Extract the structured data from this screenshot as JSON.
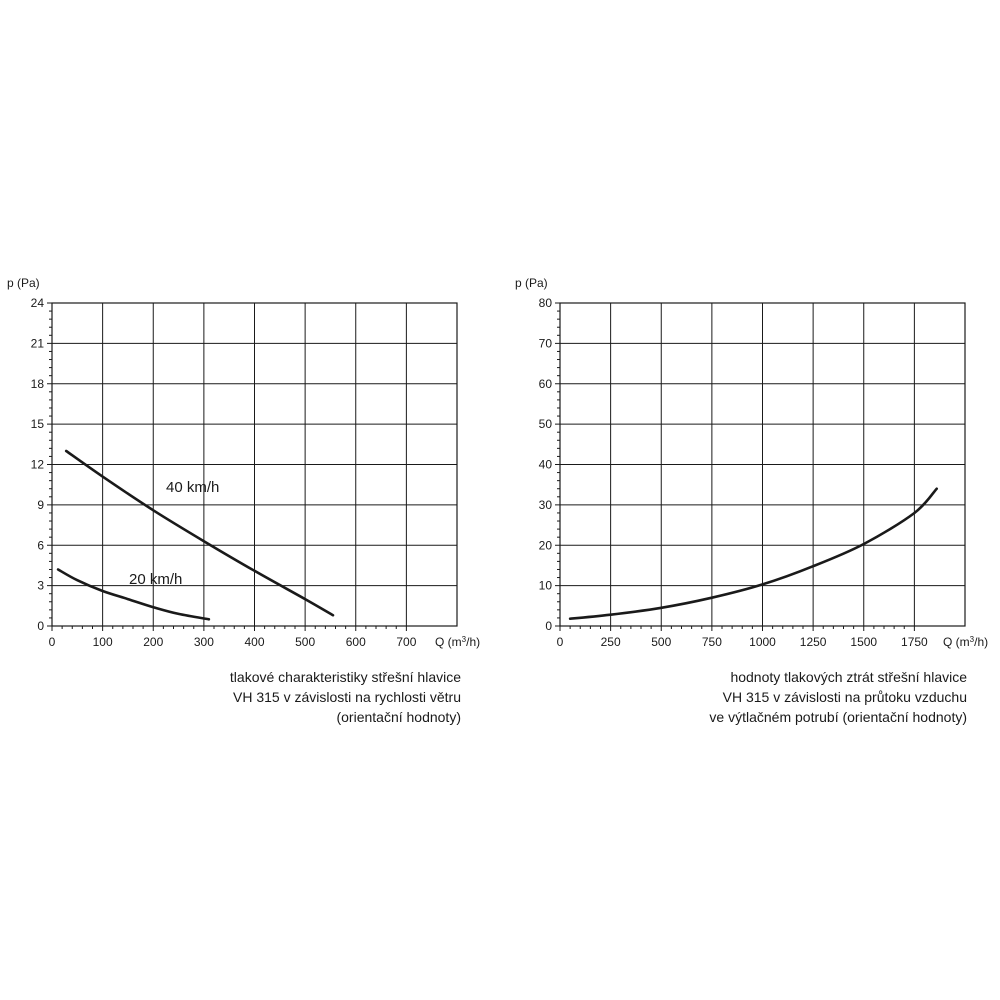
{
  "chart_data": [
    {
      "type": "line",
      "ylabel": "p (Pa)",
      "xlabel_prefix": "Q (m",
      "xlabel_sup": "3",
      "xlabel_suffix": "/h)",
      "xlim": [
        0,
        800
      ],
      "ylim": [
        0,
        24
      ],
      "x_ticks": [
        0,
        100,
        200,
        300,
        400,
        500,
        600,
        700
      ],
      "y_ticks": [
        0,
        3,
        6,
        9,
        12,
        15,
        18,
        21,
        24
      ],
      "grid": true,
      "series": [
        {
          "name": "40 km/h",
          "x": [
            28,
            100,
            200,
            300,
            400,
            500,
            555
          ],
          "y": [
            13.0,
            11.1,
            8.6,
            6.3,
            4.1,
            2.0,
            0.8
          ]
        },
        {
          "name": "20 km/h",
          "x": [
            12,
            50,
            100,
            150,
            200,
            250,
            310
          ],
          "y": [
            4.2,
            3.4,
            2.6,
            2.0,
            1.4,
            0.9,
            0.5
          ]
        }
      ],
      "caption": [
        "tlakové charakteristiky střešní hlavice",
        "VH 315 v závislosti na rychlosti větru",
        "(orientační hodnoty)"
      ]
    },
    {
      "type": "line",
      "ylabel": "p (Pa)",
      "xlabel_prefix": "Q (m",
      "xlabel_sup": "3",
      "xlabel_suffix": "/h)",
      "xlim": [
        0,
        2000
      ],
      "ylim": [
        0,
        80
      ],
      "x_ticks": [
        0,
        250,
        500,
        750,
        1000,
        1250,
        1500,
        1750
      ],
      "y_ticks": [
        0,
        10,
        20,
        30,
        40,
        50,
        60,
        70,
        80
      ],
      "grid": true,
      "series": [
        {
          "x": [
            50,
            250,
            500,
            750,
            1000,
            1250,
            1500,
            1750,
            1860
          ],
          "y": [
            1.8,
            2.8,
            4.5,
            7.0,
            10.3,
            14.8,
            20.3,
            28.0,
            34.0
          ]
        }
      ],
      "caption": [
        "hodnoty tlakových ztrát střešní hlavice",
        "VH 315 v závislosti na průtoku vzduchu",
        "ve výtlačném potrubí (orientační hodnoty)"
      ]
    }
  ]
}
